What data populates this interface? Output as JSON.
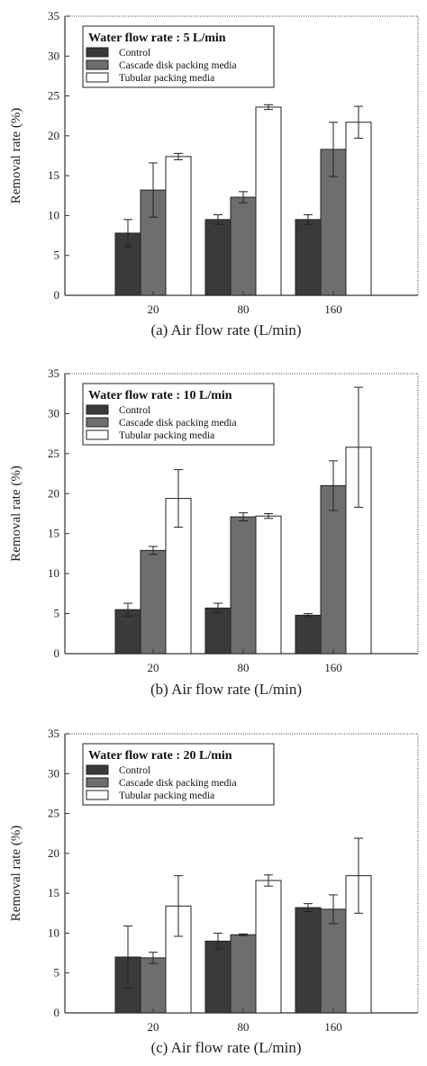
{
  "colors": {
    "control": "#3a3a3a",
    "cascade": "#6e6e6e",
    "tubular": "#ffffff",
    "frame": "#333333"
  },
  "chart_data": [
    {
      "type": "bar",
      "caption": "(a)  Air flow rate (L/min)",
      "ylabel": "Removal rate (%)",
      "ylim": [
        0,
        35
      ],
      "yticks": [
        "0",
        "5",
        "10",
        "15",
        "20",
        "25",
        "30",
        "35"
      ],
      "categories": [
        "20",
        "80",
        "160"
      ],
      "legend_title": "Water flow rate : 5 L/min",
      "legend_position": "top-left",
      "series": [
        {
          "name": "Control",
          "values": [
            7.8,
            9.5,
            9.5
          ],
          "errors": [
            1.7,
            0.6,
            0.6
          ]
        },
        {
          "name": "Cascade disk packing media",
          "values": [
            13.2,
            12.3,
            18.3
          ],
          "errors": [
            3.4,
            0.7,
            3.4
          ]
        },
        {
          "name": "Tubular packing media",
          "values": [
            17.4,
            23.6,
            21.7
          ],
          "errors": [
            0.4,
            0.3,
            2.0
          ]
        }
      ]
    },
    {
      "type": "bar",
      "caption": "(b)  Air flow rate (L/min)",
      "ylabel": "Removal rate (%)",
      "ylim": [
        0,
        35
      ],
      "yticks": [
        "0",
        "5",
        "10",
        "15",
        "20",
        "25",
        "30",
        "35"
      ],
      "categories": [
        "20",
        "80",
        "160"
      ],
      "legend_title": "Water flow rate : 10 L/min",
      "legend_position": "top-left",
      "series": [
        {
          "name": "Control",
          "values": [
            5.5,
            5.7,
            4.8
          ],
          "errors": [
            0.8,
            0.6,
            0.2
          ]
        },
        {
          "name": "Cascade disk packing media",
          "values": [
            12.9,
            17.1,
            21.0
          ],
          "errors": [
            0.5,
            0.5,
            3.1
          ]
        },
        {
          "name": "Tubular packing media",
          "values": [
            19.4,
            17.2,
            25.8
          ],
          "errors": [
            3.6,
            0.3,
            7.5
          ]
        }
      ]
    },
    {
      "type": "bar",
      "caption": "(c)  Air flow rate (L/min)",
      "ylabel": "Removal rate (%)",
      "ylim": [
        0,
        35
      ],
      "yticks": [
        "0",
        "5",
        "10",
        "15",
        "20",
        "25",
        "30",
        "35"
      ],
      "categories": [
        "20",
        "80",
        "160"
      ],
      "legend_title": "Water flow rate : 20 L/min",
      "legend_position": "top-left",
      "series": [
        {
          "name": "Control",
          "values": [
            7.0,
            9.0,
            13.2
          ],
          "errors": [
            3.9,
            1.0,
            0.5
          ]
        },
        {
          "name": "Cascade disk packing media",
          "values": [
            6.9,
            9.8,
            13.0
          ],
          "errors": [
            0.7,
            0.1,
            1.8
          ]
        },
        {
          "name": "Tubular packing media",
          "values": [
            13.4,
            16.6,
            17.2
          ],
          "errors": [
            3.8,
            0.7,
            4.7
          ]
        }
      ]
    }
  ]
}
